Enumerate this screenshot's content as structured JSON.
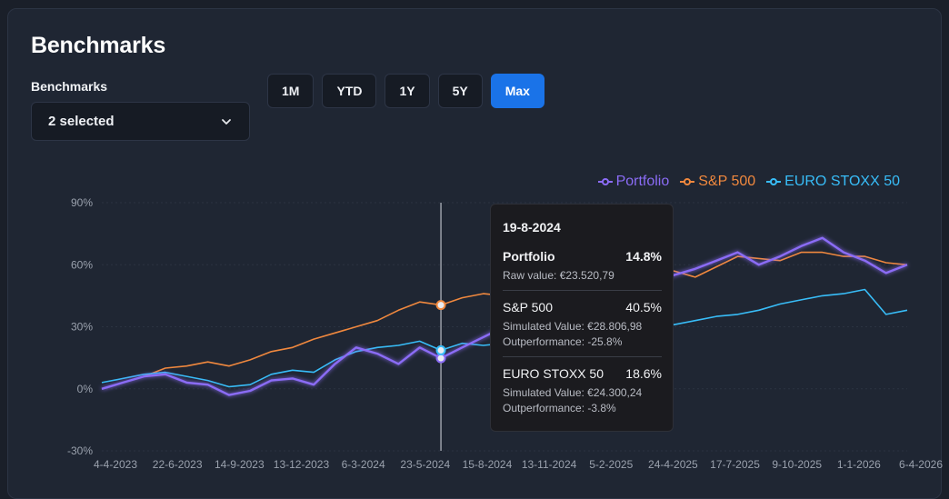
{
  "card": {
    "title": "Benchmarks"
  },
  "benchmarks_select": {
    "label": "Benchmarks",
    "value": "2 selected",
    "icon": "chevron-down-icon"
  },
  "range_buttons": [
    {
      "label": "1M",
      "active": false
    },
    {
      "label": "YTD",
      "active": false
    },
    {
      "label": "1Y",
      "active": false
    },
    {
      "label": "5Y",
      "active": false
    },
    {
      "label": "Max",
      "active": true
    }
  ],
  "legend": [
    {
      "name": "Portfolio",
      "color": "#8b6cf6"
    },
    {
      "name": "S&P 500",
      "color": "#f0883e"
    },
    {
      "name": "EURO STOXX 50",
      "color": "#38bdf8"
    }
  ],
  "tooltip": {
    "date": "19-8-2024",
    "portfolio": {
      "name": "Portfolio",
      "pct": "14.8%",
      "raw": "Raw value: €23.520,79"
    },
    "sp500": {
      "name": "S&P 500",
      "pct": "40.5%",
      "sim": "Simulated Value: €28.806,98",
      "out": "Outperformance: -25.8%"
    },
    "eurostoxx": {
      "name": "EURO STOXX 50",
      "pct": "18.6%",
      "sim": "Simulated Value: €24.300,24",
      "out": "Outperformance: -3.8%"
    }
  },
  "chart_data": {
    "type": "line",
    "title": "",
    "xlabel": "",
    "ylabel": "",
    "ylim": [
      -30,
      90
    ],
    "yticks": [
      "-30%",
      "0%",
      "30%",
      "60%",
      "90%"
    ],
    "ytick_values": [
      -30,
      0,
      30,
      60,
      90
    ],
    "xticks": [
      "4-4-2023",
      "22-6-2023",
      "14-9-2023",
      "13-12-2023",
      "6-3-2024",
      "23-5-2024",
      "15-8-2024",
      "13-11-2024",
      "5-2-2025",
      "24-4-2025",
      "17-7-2025",
      "9-10-2025",
      "1-1-2026",
      "6-4-2026"
    ],
    "grid": true,
    "legend_position": "top-right",
    "hover_index": 16,
    "series": [
      {
        "name": "Portfolio",
        "color": "#8b6cf6",
        "values": [
          0,
          3,
          6,
          7,
          3,
          2,
          -3,
          -1,
          4,
          5,
          2,
          12,
          20,
          17,
          12,
          20,
          14.8,
          20,
          25,
          30,
          38,
          42,
          36,
          45,
          41,
          47,
          52,
          55,
          58,
          62,
          66,
          60,
          64,
          69,
          73,
          66,
          62,
          56,
          60
        ]
      },
      {
        "name": "S&P 500",
        "color": "#f0883e",
        "values": [
          0,
          3,
          6,
          10,
          11,
          13,
          11,
          14,
          18,
          20,
          24,
          27,
          30,
          33,
          38,
          42,
          40.5,
          44,
          46,
          45,
          48,
          47,
          49,
          46,
          44,
          50,
          54,
          57,
          54,
          59,
          64,
          63,
          62,
          66,
          66,
          64,
          64,
          61,
          60
        ]
      },
      {
        "name": "EURO STOXX 50",
        "color": "#38bdf8",
        "values": [
          3,
          5,
          7,
          8,
          6,
          4,
          1,
          2,
          7,
          9,
          8,
          14,
          18,
          20,
          21,
          23,
          18.6,
          22,
          21,
          22,
          19,
          24,
          26,
          30,
          27,
          31,
          32,
          31,
          33,
          35,
          36,
          38,
          41,
          43,
          45,
          46,
          48,
          36,
          38
        ]
      }
    ]
  }
}
